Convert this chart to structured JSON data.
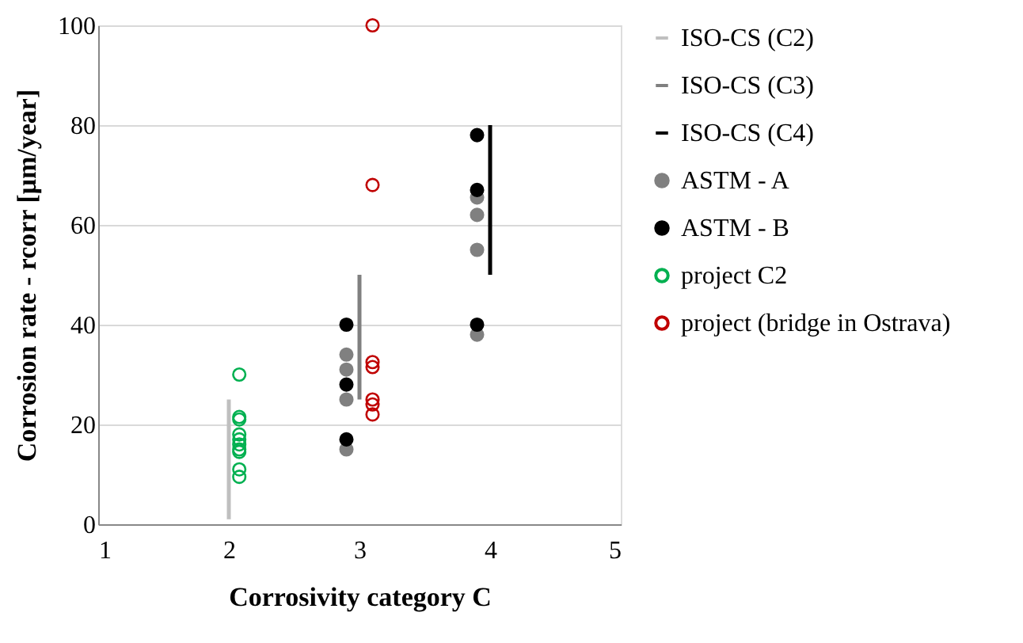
{
  "chart_data": {
    "type": "scatter",
    "xlabel": "Corrosivity category C",
    "ylabel": "Corrosion rate - rcorr [μm/year]",
    "xlim": [
      1,
      5
    ],
    "xticks": [
      1,
      2,
      3,
      4,
      5
    ],
    "ylim": [
      0,
      100
    ],
    "yticks": [
      0,
      20,
      40,
      60,
      80,
      100
    ],
    "grid": "y",
    "legend": "right",
    "series": [
      {
        "name": "ISO-CS (C2)",
        "type": "line",
        "color": "#bfbfbf",
        "x": [
          2,
          2
        ],
        "values": [
          1,
          25
        ]
      },
      {
        "name": "ISO-CS (C3)",
        "type": "line",
        "color": "#808080",
        "x": [
          3,
          3
        ],
        "values": [
          25,
          50
        ]
      },
      {
        "name": "ISO-CS (C4)",
        "type": "line",
        "color": "#000000",
        "x": [
          4,
          4
        ],
        "values": [
          50,
          80
        ]
      },
      {
        "name": "ASTM - A",
        "marker": "circle",
        "color": "#808080",
        "x": [
          2.9,
          2.9,
          2.9,
          2.9,
          3.9,
          3.9,
          3.9,
          3.9
        ],
        "values": [
          34,
          31,
          25,
          15,
          65.5,
          62,
          55,
          38
        ]
      },
      {
        "name": "ASTM - B",
        "marker": "circle",
        "color": "#000000",
        "x": [
          2.9,
          2.9,
          2.9,
          3.9,
          3.9,
          3.9
        ],
        "values": [
          40,
          28,
          17,
          78,
          67,
          40
        ]
      },
      {
        "name": "project C2",
        "color": "#00b050",
        "x": [
          2.08,
          2.08,
          2.08,
          2.08,
          2.08,
          2.08,
          2.08,
          2.08,
          2.08,
          2.08
        ],
        "values": [
          30,
          21.5,
          21,
          18,
          17,
          16,
          15,
          14.5,
          11,
          9.5
        ]
      },
      {
        "name": "project (bridge in Ostrava)",
        "color": "#c00000",
        "x": [
          3.1,
          3.1,
          3.1,
          3.1,
          3.1,
          3.1,
          3.1
        ],
        "values": [
          100,
          68,
          32.5,
          31.5,
          25,
          24,
          22
        ]
      }
    ]
  }
}
